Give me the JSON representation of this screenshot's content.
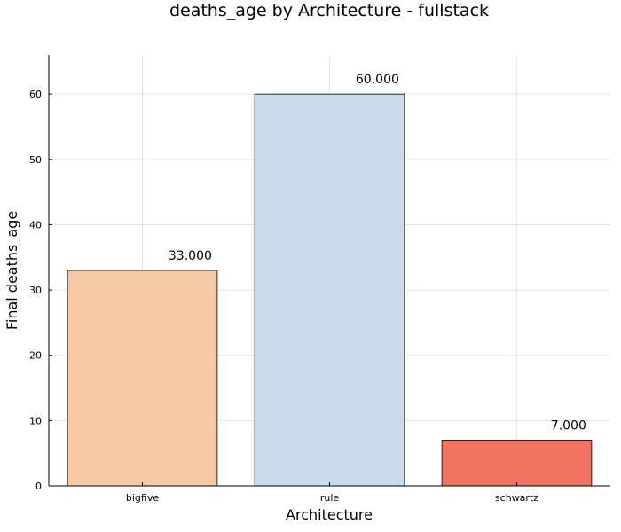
{
  "chart_data": {
    "type": "bar",
    "title": "deaths_age by Architecture - fullstack",
    "xlabel": "Architecture",
    "ylabel": "Final deaths_age",
    "categories": [
      "bigfive",
      "rule",
      "schwartz"
    ],
    "values": [
      33,
      60,
      7
    ],
    "value_labels": [
      "33.000",
      "60.000",
      "7.000"
    ],
    "colors": [
      "#f5c9a3",
      "#c8dcec",
      "#f07461"
    ],
    "ylim": [
      0,
      66
    ],
    "yticks": [
      0,
      10,
      20,
      30,
      40,
      50,
      60
    ],
    "grid": true,
    "legend": "none"
  }
}
